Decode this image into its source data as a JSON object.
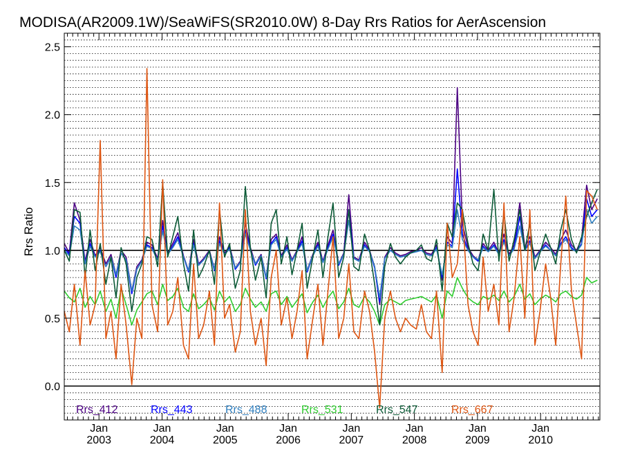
{
  "chart_data": {
    "type": "line",
    "title": "MODISA(AR2009.1W)/SeaWiFS(SR2010.0W) 8-Day Rrs Ratios for AerAscension",
    "xlabel": "",
    "ylabel": "Rrs Ratio",
    "xlim": [
      2002.45,
      2010.94
    ],
    "ylim": [
      -0.25,
      2.6
    ],
    "y_ticks": [
      "0.0",
      "0.5",
      "1.0",
      "1.5",
      "2.0",
      "2.5"
    ],
    "x_ticks": [
      {
        "month": "Jan",
        "year": "2003"
      },
      {
        "month": "Jan",
        "year": "2004"
      },
      {
        "month": "Jan",
        "year": "2005"
      },
      {
        "month": "Jan",
        "year": "2006"
      },
      {
        "month": "Jan",
        "year": "2007"
      },
      {
        "month": "Jan",
        "year": "2008"
      },
      {
        "month": "Jan",
        "year": "2009"
      },
      {
        "month": "Jan",
        "year": "2010"
      }
    ],
    "reference_lines": [
      1.0,
      0.0
    ],
    "grid": "dotted horizontal",
    "legend_position": "bottom",
    "series": [
      {
        "name": "Rrs_412",
        "color": "#4b0082"
      },
      {
        "name": "Rrs_443",
        "color": "#0000ff"
      },
      {
        "name": "Rrs_488",
        "color": "#2f7fbf"
      },
      {
        "name": "Rrs_531",
        "color": "#2ecc2e"
      },
      {
        "name": "Rrs_547",
        "color": "#0b5a36"
      },
      {
        "name": "Rrs_667",
        "color": "#dd5511"
      }
    ],
    "x": [
      2002.45,
      2002.53,
      2002.61,
      2002.7,
      2002.78,
      2002.86,
      2002.94,
      2003.02,
      2003.11,
      2003.19,
      2003.27,
      2003.35,
      2003.43,
      2003.52,
      2003.6,
      2003.68,
      2003.76,
      2003.84,
      2003.93,
      2004.01,
      2004.09,
      2004.17,
      2004.25,
      2004.34,
      2004.42,
      2004.5,
      2004.58,
      2004.66,
      2004.75,
      2004.83,
      2004.91,
      2004.99,
      2005.07,
      2005.16,
      2005.24,
      2005.32,
      2005.4,
      2005.48,
      2005.57,
      2005.65,
      2005.73,
      2005.81,
      2005.89,
      2005.98,
      2006.06,
      2006.14,
      2006.22,
      2006.3,
      2006.39,
      2006.47,
      2006.55,
      2006.63,
      2006.71,
      2006.8,
      2006.88,
      2006.96,
      2007.04,
      2007.12,
      2007.21,
      2007.29,
      2007.37,
      2007.45,
      2007.53,
      2007.62,
      2007.7,
      2007.78,
      2007.86,
      2007.94,
      2008.03,
      2008.11,
      2008.19,
      2008.27,
      2008.35,
      2008.44,
      2008.52,
      2008.6,
      2008.68,
      2008.76,
      2008.85,
      2008.93,
      2009.01,
      2009.09,
      2009.17,
      2009.26,
      2009.34,
      2009.42,
      2009.5,
      2009.58,
      2009.67,
      2009.75,
      2009.83,
      2009.91,
      2009.99,
      2010.08,
      2010.16,
      2010.24,
      2010.32,
      2010.4,
      2010.49,
      2010.57,
      2010.65,
      2010.73,
      2010.81,
      2010.9
    ],
    "values": {
      "Rrs_412": [
        1.05,
        0.98,
        1.35,
        1.22,
        0.92,
        1.08,
        0.96,
        1.02,
        0.9,
        0.97,
        0.82,
        1.0,
        0.95,
        0.7,
        0.88,
        0.93,
        1.06,
        1.04,
        0.94,
        1.22,
        0.98,
        1.05,
        1.13,
        0.96,
        0.85,
        1.08,
        0.9,
        0.94,
        1.0,
        0.86,
        1.1,
        0.98,
        1.03,
        0.87,
        0.92,
        1.2,
        1.02,
        0.9,
        0.97,
        0.8,
        1.08,
        1.12,
        0.96,
        1.04,
        0.93,
        1.0,
        1.1,
        0.85,
        0.97,
        1.06,
        0.92,
        1.04,
        1.15,
        0.9,
        0.98,
        1.41,
        0.95,
        0.93,
        1.06,
        1.0,
        0.88,
        0.6,
        0.95,
        1.02,
        0.98,
        0.96,
        0.97,
        0.99,
        1.0,
        1.02,
        0.98,
        0.97,
        1.04,
        0.78,
        1.1,
        1.05,
        2.2,
        1.2,
        1.02,
        0.96,
        0.93,
        1.05,
        1.0,
        1.06,
        0.98,
        1.12,
        0.97,
        1.04,
        1.35,
        1.02,
        1.1,
        0.95,
        1.0,
        1.06,
        1.02,
        0.97,
        1.08,
        1.15,
        1.04,
        1.0,
        1.08,
        1.48,
        1.3,
        1.38
      ],
      "Rrs_443": [
        1.02,
        0.97,
        1.25,
        1.2,
        0.9,
        1.05,
        0.95,
        1.0,
        0.88,
        0.95,
        0.8,
        0.98,
        0.93,
        0.68,
        0.86,
        0.92,
        1.04,
        1.02,
        0.93,
        1.18,
        0.97,
        1.03,
        1.1,
        0.95,
        0.84,
        1.05,
        0.89,
        0.93,
        0.99,
        0.85,
        1.07,
        0.97,
        1.02,
        0.86,
        0.91,
        1.15,
        1.0,
        0.89,
        0.96,
        0.79,
        1.05,
        1.1,
        0.95,
        1.02,
        0.92,
        0.99,
        1.07,
        0.84,
        0.96,
        1.04,
        0.91,
        1.02,
        1.12,
        0.89,
        0.97,
        1.3,
        0.94,
        0.92,
        1.04,
        0.99,
        0.87,
        0.62,
        0.94,
        1.0,
        0.97,
        0.95,
        0.96,
        0.98,
        0.99,
        1.0,
        0.97,
        0.96,
        1.02,
        0.8,
        1.06,
        1.03,
        1.6,
        1.12,
        1.0,
        0.95,
        0.92,
        1.03,
        0.99,
        1.04,
        0.97,
        1.08,
        0.96,
        1.02,
        1.25,
        1.0,
        1.07,
        0.94,
        0.99,
        1.04,
        1.0,
        0.96,
        1.05,
        1.1,
        1.02,
        0.99,
        1.05,
        1.38,
        1.25,
        1.3
      ],
      "Rrs_488": [
        1.0,
        0.96,
        1.18,
        1.15,
        0.9,
        1.03,
        0.95,
        0.99,
        0.88,
        0.95,
        0.82,
        0.98,
        0.93,
        0.7,
        0.86,
        0.92,
        1.03,
        1.01,
        0.93,
        1.14,
        0.97,
        1.02,
        1.08,
        0.95,
        0.85,
        1.04,
        0.89,
        0.93,
        0.99,
        0.86,
        1.05,
        0.97,
        1.01,
        0.87,
        0.91,
        1.12,
        1.0,
        0.9,
        0.96,
        0.8,
        1.04,
        1.08,
        0.95,
        1.01,
        0.92,
        0.99,
        1.05,
        0.85,
        0.96,
        1.03,
        0.91,
        1.01,
        1.1,
        0.9,
        0.97,
        1.22,
        0.94,
        0.92,
        1.03,
        0.99,
        0.88,
        0.65,
        0.94,
        1.0,
        0.97,
        0.95,
        0.96,
        0.98,
        0.99,
        1.0,
        0.97,
        0.96,
        1.01,
        0.82,
        1.04,
        1.02,
        1.3,
        1.08,
        1.0,
        0.95,
        0.93,
        1.02,
        0.99,
        1.03,
        0.97,
        1.06,
        0.96,
        1.01,
        1.18,
        1.0,
        1.05,
        0.94,
        0.99,
        1.03,
        1.0,
        0.96,
        1.04,
        1.08,
        1.01,
        0.99,
        1.04,
        1.3,
        1.2,
        1.25
      ],
      "Rrs_531": [
        0.7,
        0.65,
        0.62,
        0.72,
        0.58,
        0.66,
        0.6,
        0.7,
        0.55,
        0.64,
        0.5,
        0.72,
        0.6,
        0.45,
        0.56,
        0.62,
        0.68,
        0.7,
        0.6,
        0.75,
        0.63,
        0.66,
        0.72,
        0.58,
        0.55,
        0.68,
        0.57,
        0.6,
        0.65,
        0.56,
        0.7,
        0.62,
        0.66,
        0.55,
        0.6,
        0.72,
        0.64,
        0.58,
        0.62,
        0.55,
        0.68,
        0.7,
        0.6,
        0.66,
        0.58,
        0.63,
        0.68,
        0.54,
        0.62,
        0.67,
        0.58,
        0.65,
        0.7,
        0.57,
        0.62,
        0.72,
        0.6,
        0.58,
        0.66,
        0.62,
        0.55,
        0.45,
        0.6,
        0.64,
        0.62,
        0.6,
        0.63,
        0.64,
        0.65,
        0.66,
        0.64,
        0.62,
        0.67,
        0.5,
        0.7,
        0.66,
        0.8,
        0.72,
        0.65,
        0.62,
        0.6,
        0.66,
        0.64,
        0.67,
        0.63,
        0.7,
        0.62,
        0.66,
        0.75,
        0.64,
        0.68,
        0.6,
        0.64,
        0.67,
        0.65,
        0.62,
        0.68,
        0.7,
        0.66,
        0.64,
        0.67,
        0.8,
        0.76,
        0.78
      ],
      "Rrs_547": [
        1.0,
        0.92,
        1.3,
        1.28,
        0.8,
        1.15,
        0.85,
        1.05,
        0.75,
        0.95,
        0.65,
        1.02,
        0.9,
        0.55,
        0.8,
        0.9,
        1.1,
        1.08,
        0.88,
        1.5,
        0.95,
        1.1,
        1.25,
        0.9,
        0.7,
        1.15,
        0.8,
        0.88,
        1.0,
        0.75,
        1.3,
        0.95,
        1.05,
        0.72,
        0.85,
        1.47,
        1.02,
        0.78,
        0.95,
        0.65,
        1.2,
        1.3,
        0.9,
        1.1,
        0.82,
        1.0,
        1.2,
        0.72,
        0.95,
        1.15,
        0.8,
        1.1,
        1.35,
        0.8,
        0.95,
        1.3,
        0.88,
        0.85,
        1.12,
        1.0,
        0.75,
        0.45,
        0.88,
        1.05,
        0.95,
        0.9,
        0.95,
        0.98,
        1.0,
        1.04,
        0.94,
        0.92,
        1.08,
        0.7,
        1.2,
        1.1,
        1.35,
        1.3,
        1.05,
        0.9,
        0.85,
        1.12,
        1.0,
        1.45,
        0.92,
        1.28,
        0.92,
        1.08,
        1.3,
        1.0,
        1.2,
        0.85,
        0.98,
        1.12,
        1.02,
        0.9,
        1.15,
        1.3,
        1.08,
        0.98,
        1.1,
        1.25,
        1.35,
        1.45
      ],
      "Rrs_667": [
        0.55,
        0.4,
        0.75,
        0.3,
        0.85,
        0.45,
        0.6,
        1.81,
        0.35,
        0.55,
        0.2,
        0.75,
        0.45,
        0.01,
        0.5,
        0.35,
        2.34,
        0.6,
        0.4,
        1.52,
        0.45,
        0.55,
        0.8,
        0.3,
        0.2,
        0.9,
        0.35,
        0.45,
        0.7,
        0.3,
        1.35,
        0.5,
        0.6,
        0.25,
        0.4,
        1.3,
        0.55,
        0.3,
        0.5,
        0.15,
        0.8,
        1.0,
        0.45,
        0.65,
        0.35,
        0.55,
        0.85,
        0.2,
        0.5,
        0.75,
        0.3,
        0.7,
        1.1,
        0.35,
        0.5,
        0.9,
        0.4,
        0.35,
        0.7,
        0.55,
        0.25,
        -0.16,
        0.5,
        0.7,
        0.5,
        0.4,
        0.5,
        0.45,
        0.42,
        0.6,
        0.4,
        0.35,
        0.7,
        0.1,
        1.2,
        0.8,
        0.9,
        1.3,
        0.6,
        0.4,
        0.3,
        0.95,
        0.55,
        0.75,
        0.45,
        1.35,
        0.4,
        0.65,
        1.1,
        0.5,
        1.3,
        0.3,
        0.55,
        0.9,
        0.65,
        0.3,
        0.9,
        1.4,
        0.7,
        0.45,
        0.2,
        1.44,
        1.4,
        1.3
      ]
    }
  }
}
